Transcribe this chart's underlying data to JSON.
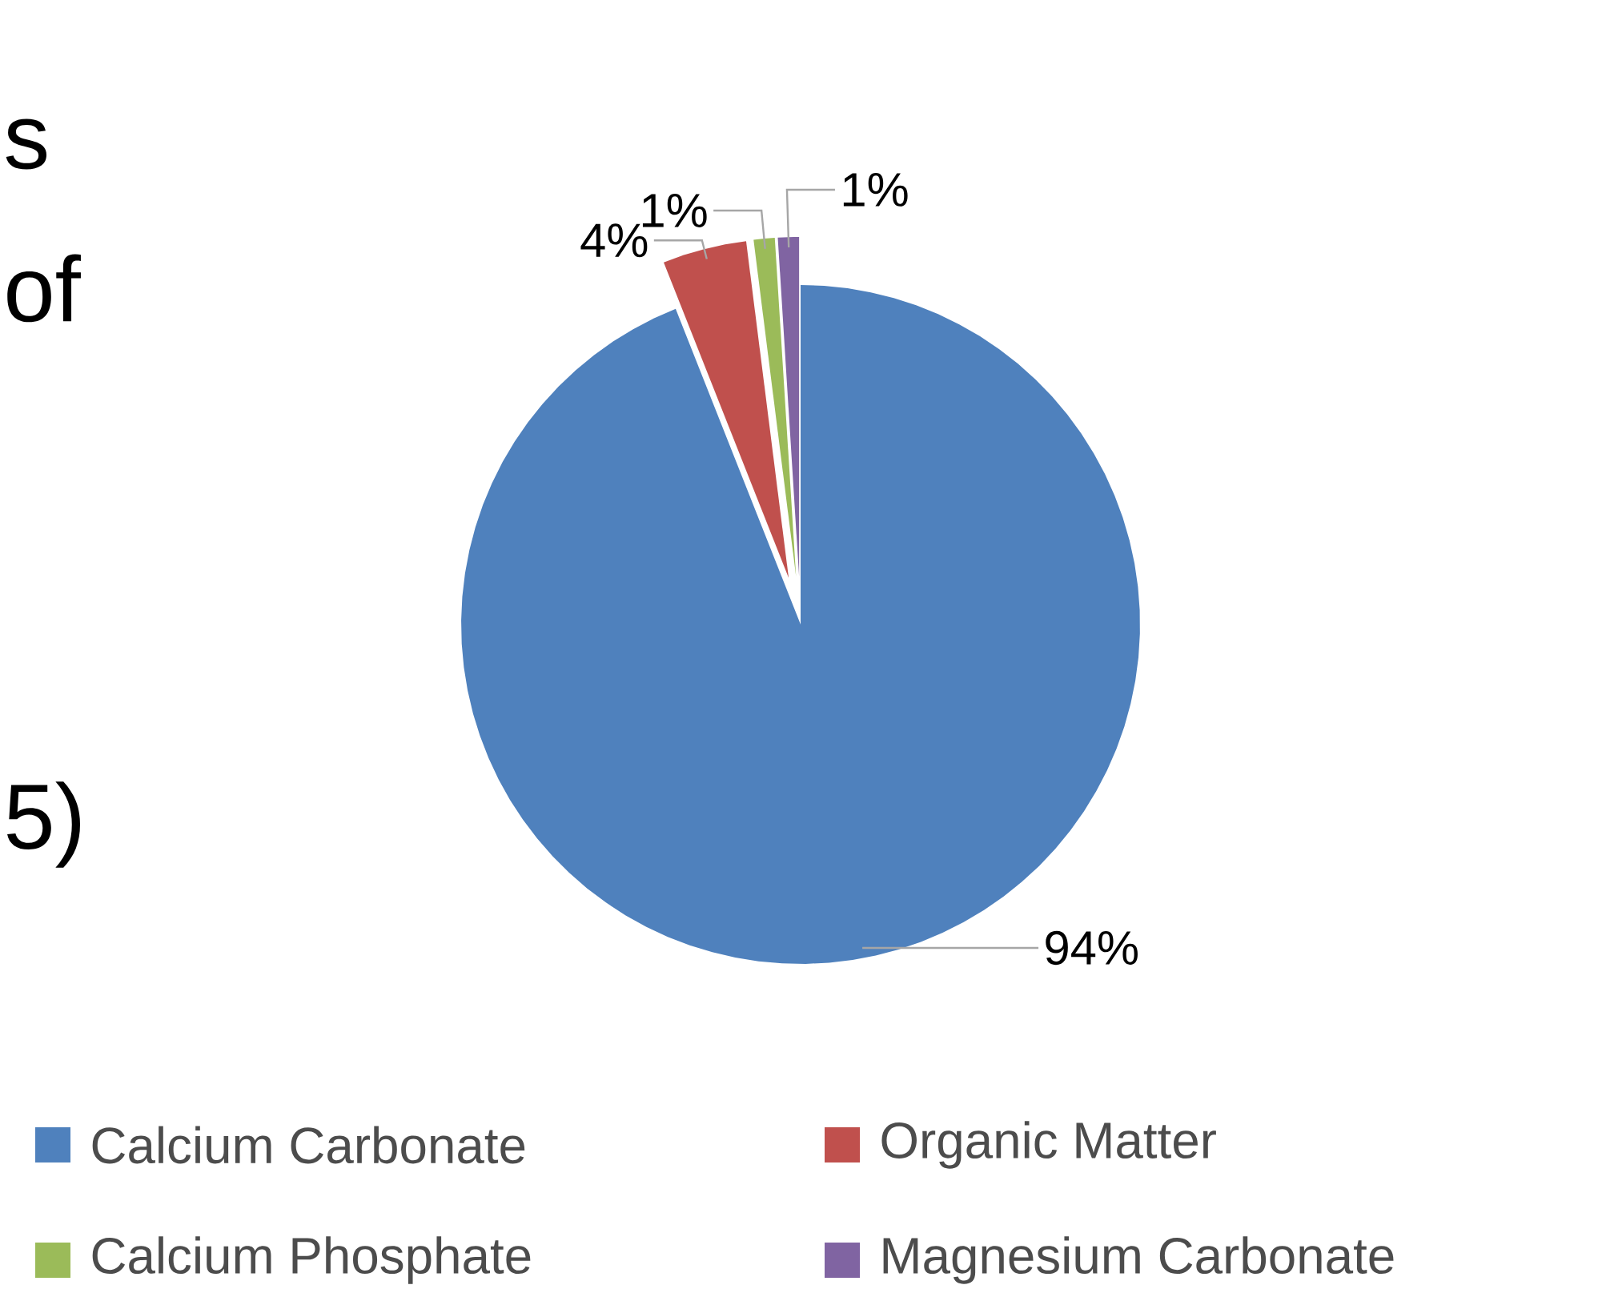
{
  "chart_data": {
    "type": "pie",
    "categories": [
      "Calcium Carbonate",
      "Organic Matter",
      "Calcium Phosphate",
      "Magnesium Carbonate"
    ],
    "values": [
      94,
      4,
      1,
      1
    ],
    "colors": [
      "#4f81bd",
      "#c0504d",
      "#9bbb59",
      "#8064a2"
    ],
    "value_labels": [
      "94%",
      "4%",
      "1%",
      "1%"
    ],
    "legend": "bottom",
    "annotations": [
      "s",
      "of",
      "5)"
    ]
  }
}
